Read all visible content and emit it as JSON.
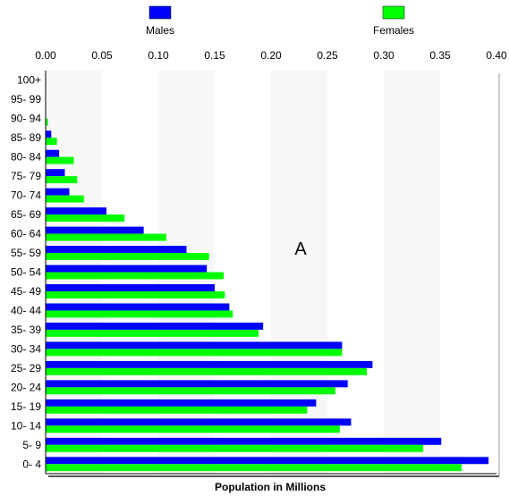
{
  "chart_data": {
    "type": "bar",
    "orientation": "horizontal",
    "title": "",
    "xlabel": "Population in Millions",
    "ylabel": "",
    "xlim": [
      0,
      0.4
    ],
    "x_ticks": [
      "0.00",
      "0.05",
      "0.10",
      "0.15",
      "0.20",
      "0.25",
      "0.30",
      "0.35",
      "0.40"
    ],
    "x_tick_values": [
      0,
      0.05,
      0.1,
      0.15,
      0.2,
      0.25,
      0.3,
      0.35,
      0.4
    ],
    "grid": "alternating vertical bands",
    "legend_position": "top",
    "annotation": "A",
    "categories": [
      "100+",
      "95- 99",
      "90- 94",
      "85- 89",
      "80- 84",
      "75- 79",
      "70- 74",
      "65- 69",
      "60- 64",
      "55- 59",
      "50- 54",
      "45- 49",
      "40- 44",
      "35- 39",
      "30- 34",
      "25- 29",
      "20- 24",
      "15- 19",
      "10- 14",
      "5- 9",
      "0- 4"
    ],
    "series": [
      {
        "name": "Males",
        "color": "#0000ff",
        "values": [
          0,
          0,
          0,
          0.005,
          0.012,
          0.017,
          0.021,
          0.054,
          0.087,
          0.125,
          0.143,
          0.15,
          0.163,
          0.193,
          0.263,
          0.29,
          0.268,
          0.24,
          0.271,
          0.351,
          0.393
        ]
      },
      {
        "name": "Females",
        "color": "#00ff00",
        "values": [
          0,
          0,
          0.002,
          0.01,
          0.025,
          0.028,
          0.034,
          0.07,
          0.107,
          0.145,
          0.158,
          0.159,
          0.166,
          0.189,
          0.263,
          0.285,
          0.257,
          0.232,
          0.261,
          0.335,
          0.369
        ]
      }
    ]
  }
}
